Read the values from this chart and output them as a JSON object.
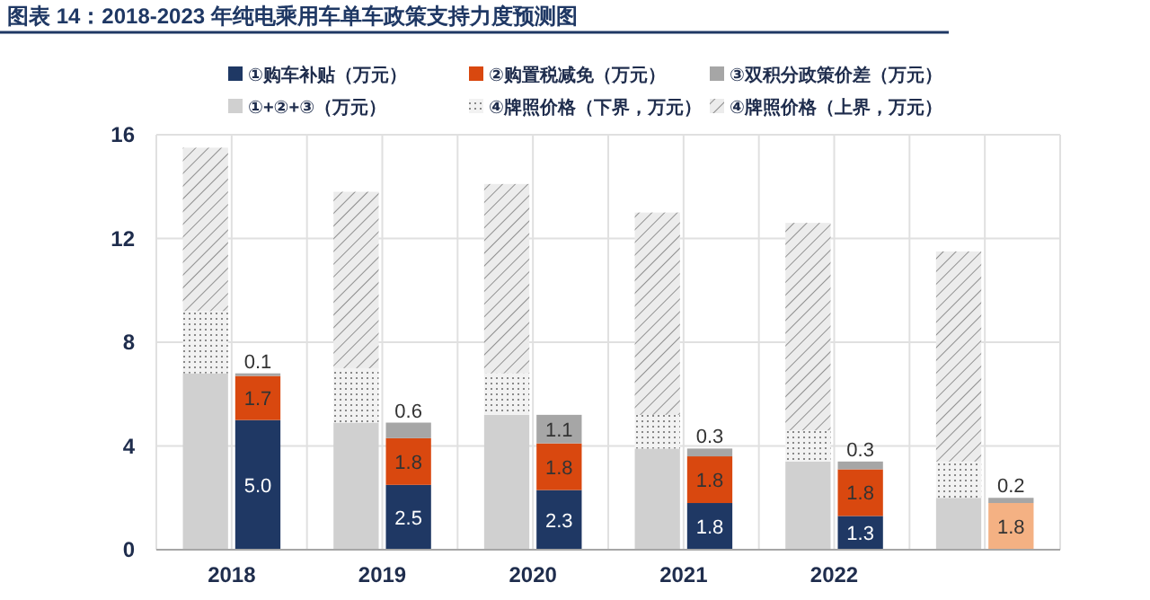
{
  "chart_data": [
    {
      "type": "bar",
      "title": "图表 14：2018-2023 年纯电乘用车单车政策支持力度预测图",
      "categories": [
        "2018",
        "2019",
        "2020",
        "2021",
        "2022",
        null
      ],
      "stacked": true,
      "series": [
        {
          "name": "①购车补贴（万元）",
          "color": "#1f3864",
          "values": [
            5.0,
            2.5,
            2.3,
            1.8,
            1.3,
            null
          ],
          "value_labels": [
            "5.0",
            "2.5",
            "2.3",
            "1.8",
            "1.3",
            null
          ]
        },
        {
          "name": "②购置税减免（万元）",
          "color": "#d9480f",
          "values": [
            1.7,
            1.8,
            1.8,
            1.8,
            1.8,
            1.8
          ],
          "colors": [
            "#d9480f",
            "#d9480f",
            "#d9480f",
            "#d9480f",
            "#d9480f",
            "#f4b183"
          ],
          "value_labels": [
            "1.7",
            "1.8",
            "1.8",
            "1.8",
            "1.8",
            "1.8"
          ]
        },
        {
          "name": "③双积分政策价差（万元）",
          "color": "#a6a6a6",
          "values": [
            0.1,
            0.6,
            1.1,
            0.3,
            0.3,
            0.2
          ],
          "value_labels": [
            "0.1",
            "0.6",
            "1.1",
            "0.3",
            "0.3",
            "0.2"
          ]
        }
      ],
      "ylim": [
        0,
        16
      ],
      "yticks": [
        0,
        4,
        8,
        12,
        16
      ],
      "grid": true,
      "legend": "top"
    },
    {
      "type": "bar",
      "categories": [
        null,
        null,
        null,
        null,
        null,
        null
      ],
      "stacked": true,
      "series": [
        {
          "name": "①+②+③（万元）",
          "color": "#d0d0d0",
          "values": [
            6.8,
            4.9,
            5.2,
            3.9,
            3.4,
            2.0
          ]
        },
        {
          "name": "④牌照价格（下界，万元）",
          "color": "#f2f2f2",
          "values": [
            2.4,
            2.1,
            1.6,
            1.3,
            1.2,
            1.4
          ]
        },
        {
          "name": "④牌照价格（上界，万元）",
          "color": "#ececec",
          "values": [
            6.3,
            6.8,
            7.3,
            7.8,
            8.0,
            8.1
          ]
        }
      ],
      "ylim": [
        0,
        16
      ],
      "legend": "top"
    }
  ]
}
